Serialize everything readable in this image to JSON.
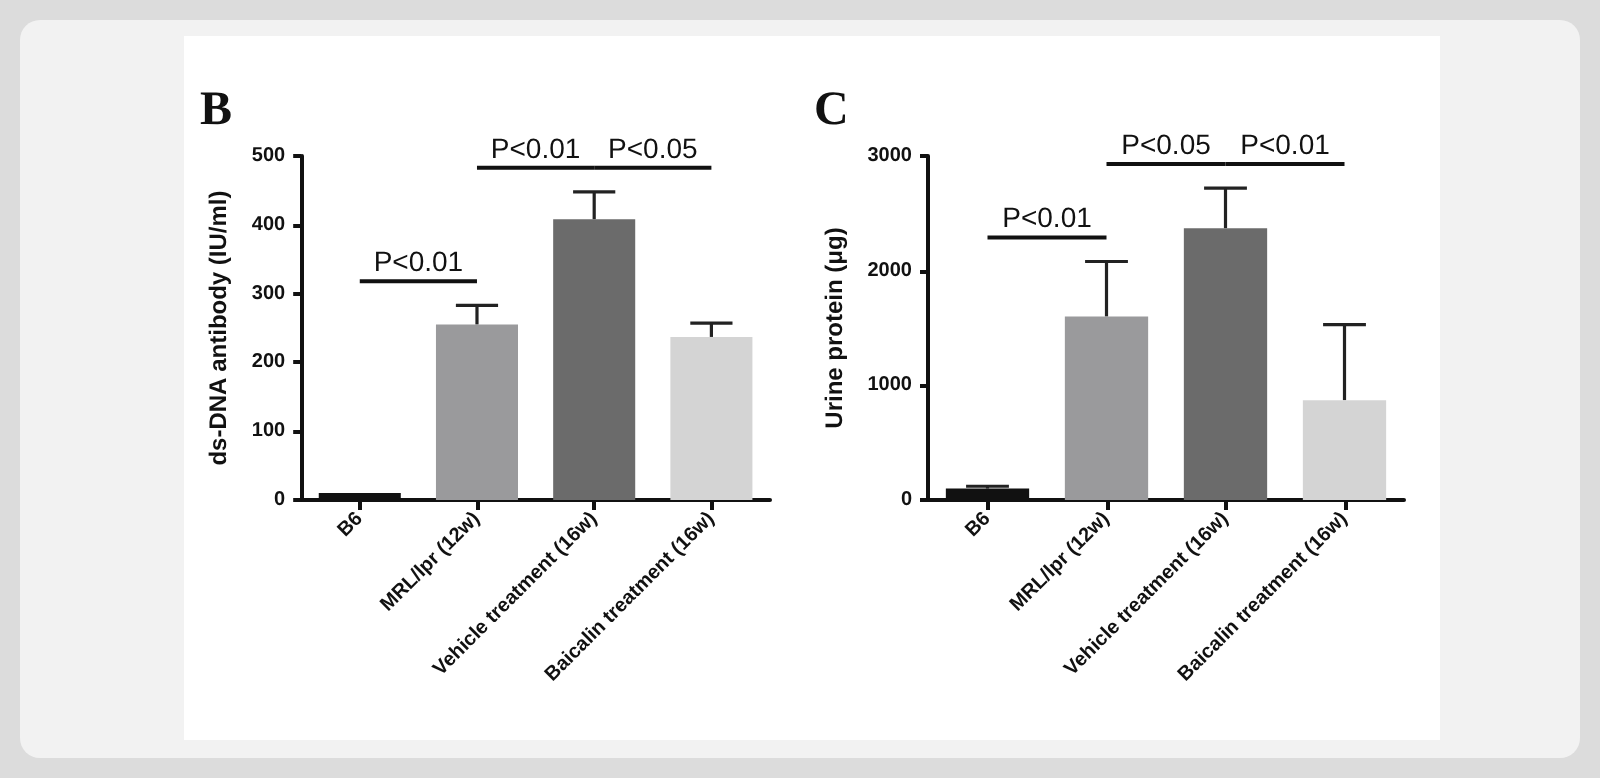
{
  "chart_data": [
    {
      "type": "bar",
      "title": "B",
      "ylabel": "ds-DNA antibody (IU/ml)",
      "categories": [
        "B6",
        "MRL/lpr (12w)",
        "Vehicle treatment (16w)",
        "Baicalin treatment (16w)"
      ],
      "values": [
        10,
        255,
        408,
        237
      ],
      "colors": [
        "#111111",
        "#9a9a9c",
        "#6b6b6b",
        "#d4d4d4"
      ],
      "errors": [
        null,
        [
          255,
          283
        ],
        [
          408,
          448
        ],
        [
          237,
          257
        ]
      ],
      "ylim": [
        0,
        500
      ],
      "yticks": [
        0,
        100,
        200,
        300,
        400,
        500
      ],
      "grid": false,
      "annotations": [
        "P<0.01",
        "P<0.01",
        "P<0.05"
      ]
    },
    {
      "type": "bar",
      "title": "C",
      "ylabel": "Urine protein (μg)",
      "categories": [
        "B6",
        "MRL/lpr (12w)",
        "Vehicle treatment (16w)",
        "Baicalin treatment (16w)"
      ],
      "values": [
        100,
        1600,
        2370,
        870
      ],
      "colors": [
        "#111111",
        "#9a9a9c",
        "#6b6b6b",
        "#d4d4d4"
      ],
      "errors": [
        [
          100,
          120
        ],
        [
          1600,
          2080
        ],
        [
          2370,
          2720
        ],
        [
          870,
          1530
        ]
      ],
      "ylim": [
        0,
        3000
      ],
      "yticks": [
        0,
        1000,
        2000,
        3000
      ],
      "grid": false,
      "annotations": [
        "P<0.01",
        "P<0.05",
        "P<0.01"
      ]
    }
  ]
}
